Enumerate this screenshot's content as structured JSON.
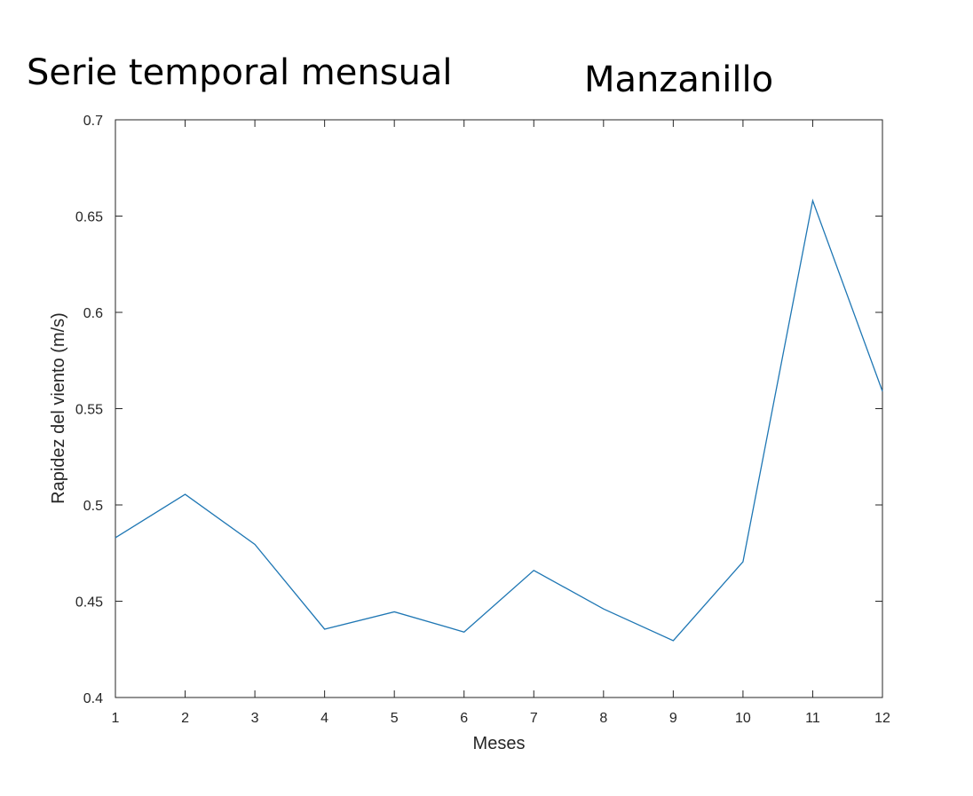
{
  "chart_data": {
    "type": "line",
    "title_left": "Serie temporal mensual",
    "title_right": "Manzanillo",
    "xlabel": "Meses",
    "ylabel": "Rapidez del viento (m/s)",
    "xlim": [
      1,
      12
    ],
    "ylim": [
      0.4,
      0.7
    ],
    "xticks": [
      "1",
      "2",
      "3",
      "4",
      "5",
      "6",
      "7",
      "8",
      "9",
      "10",
      "11",
      "12"
    ],
    "yticks": [
      "0.4",
      "0.45",
      "0.5",
      "0.55",
      "0.6",
      "0.65",
      "0.7"
    ],
    "grid": false,
    "series": [
      {
        "x": [
          1,
          2,
          3,
          4,
          5,
          6,
          7,
          8,
          9,
          10,
          11,
          12
        ],
        "values": [
          0.483,
          0.5055,
          0.4795,
          0.4355,
          0.4445,
          0.434,
          0.466,
          0.446,
          0.4295,
          0.4705,
          0.658,
          0.559
        ],
        "color": "#1f77b4"
      }
    ]
  }
}
